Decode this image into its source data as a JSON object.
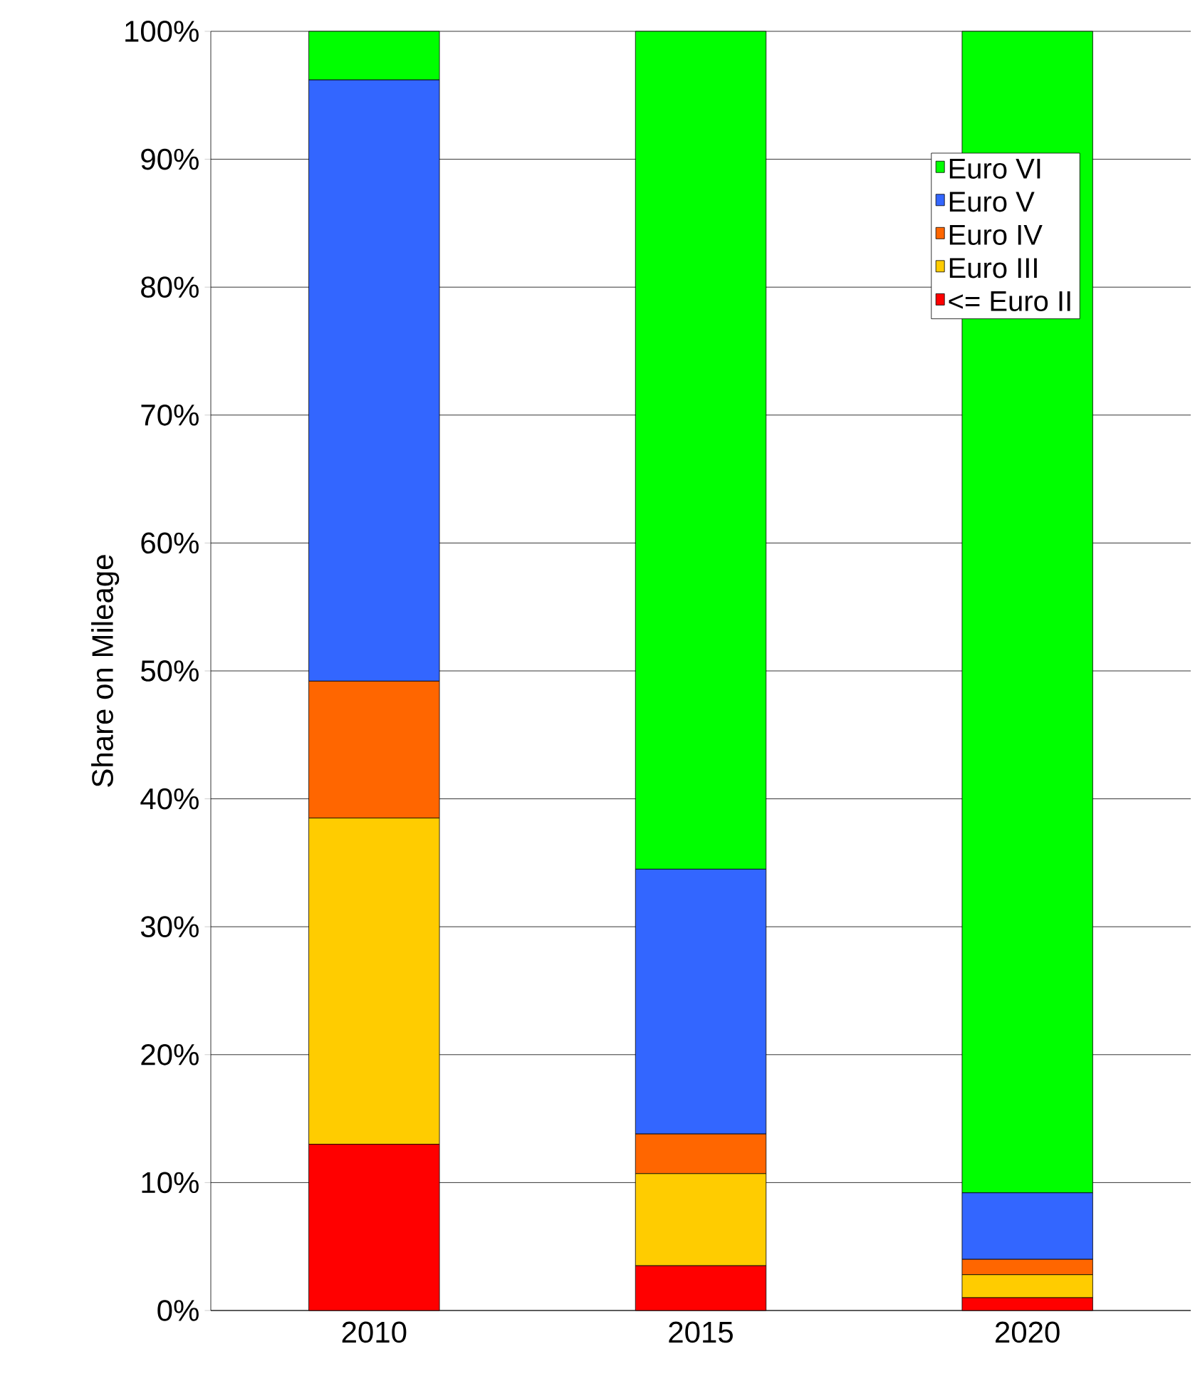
{
  "chart_data": {
    "type": "bar",
    "stacked": true,
    "ylabel": "Share on Mileage",
    "categories": [
      "2010",
      "2015",
      "2020"
    ],
    "series": [
      {
        "name": "<= Euro II",
        "color": "#ff0000",
        "values": [
          13.0,
          3.5,
          1.0
        ]
      },
      {
        "name": "Euro III",
        "color": "#ffcc00",
        "values": [
          25.5,
          7.2,
          1.8
        ]
      },
      {
        "name": "Euro IV",
        "color": "#ff6600",
        "values": [
          10.7,
          3.1,
          1.2
        ]
      },
      {
        "name": "Euro V",
        "color": "#3366ff",
        "values": [
          47.0,
          20.7,
          5.2
        ]
      },
      {
        "name": "Euro VI",
        "color": "#00ff00",
        "values": [
          3.8,
          65.5,
          90.8
        ]
      }
    ],
    "ylim": [
      0,
      100
    ],
    "yticks": [
      {
        "value": 0,
        "label": "0%"
      },
      {
        "value": 10,
        "label": "10%"
      },
      {
        "value": 20,
        "label": "20%"
      },
      {
        "value": 30,
        "label": "30%"
      },
      {
        "value": 40,
        "label": "40%"
      },
      {
        "value": 50,
        "label": "50%"
      },
      {
        "value": 60,
        "label": "60%"
      },
      {
        "value": 70,
        "label": "70%"
      },
      {
        "value": 80,
        "label": "80%"
      },
      {
        "value": 90,
        "label": "90%"
      },
      {
        "value": 100,
        "label": "100%"
      }
    ],
    "grid": "y",
    "legend": "top right"
  }
}
